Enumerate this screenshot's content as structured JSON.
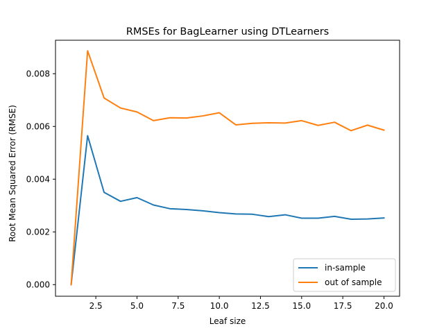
{
  "chart_data": {
    "type": "line",
    "title": "RMSEs for BagLearner using DTLearners",
    "xlabel": "Leaf size",
    "ylabel": "Root Mean Squared Error (RMSE)",
    "xlim": [
      0.05,
      20.95
    ],
    "ylim": [
      -0.00044,
      0.00927
    ],
    "xticks": [
      2.5,
      5.0,
      7.5,
      10.0,
      12.5,
      15.0,
      17.5,
      20.0
    ],
    "xtick_labels": [
      "2.5",
      "5.0",
      "7.5",
      "10.0",
      "12.5",
      "15.0",
      "17.5",
      "20.0"
    ],
    "yticks": [
      0.0,
      0.002,
      0.004,
      0.006,
      0.008
    ],
    "ytick_labels": [
      "0.000",
      "0.002",
      "0.004",
      "0.006",
      "0.008"
    ],
    "grid": false,
    "legend_position": "lower-right",
    "x": [
      1,
      2,
      3,
      4,
      5,
      6,
      7,
      8,
      9,
      10,
      11,
      12,
      13,
      14,
      15,
      16,
      17,
      18,
      19,
      20
    ],
    "series": [
      {
        "name": "in-sample",
        "color": "#1f77b4",
        "values": [
          0.0,
          0.00565,
          0.0035,
          0.00316,
          0.0033,
          0.00302,
          0.00288,
          0.00285,
          0.0028,
          0.00273,
          0.00268,
          0.00267,
          0.00258,
          0.00265,
          0.00252,
          0.00252,
          0.00259,
          0.00248,
          0.00249,
          0.00253
        ]
      },
      {
        "name": "out of sample",
        "color": "#ff7f0e",
        "values": [
          0.0,
          0.00887,
          0.00708,
          0.0067,
          0.00655,
          0.00622,
          0.00633,
          0.00632,
          0.0064,
          0.00652,
          0.00606,
          0.00612,
          0.00614,
          0.00613,
          0.00622,
          0.00604,
          0.00616,
          0.00584,
          0.00605,
          0.00586
        ]
      }
    ]
  }
}
